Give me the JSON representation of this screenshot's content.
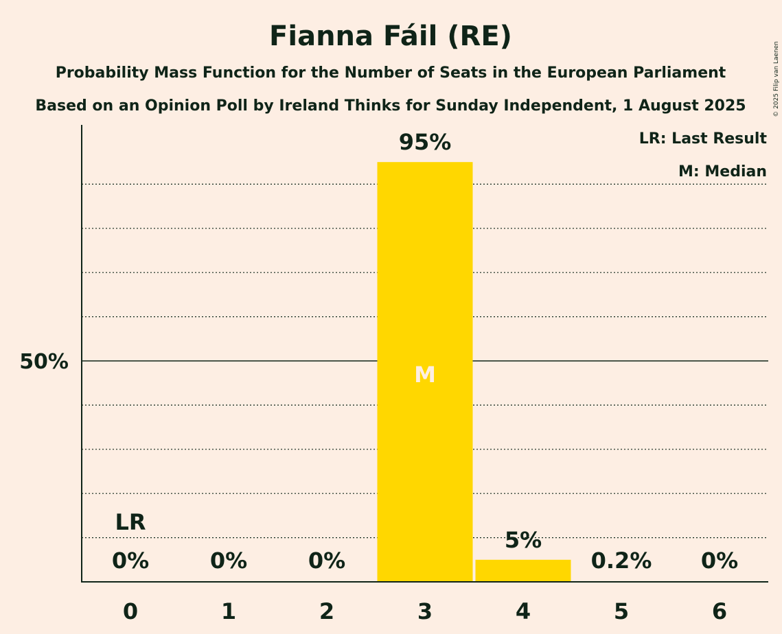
{
  "chart_data": {
    "type": "bar",
    "title": "Fianna Fáil (RE)",
    "subtitle": "Probability Mass Function for the Number of Seats in the European Parliament",
    "subtitle2": "Based on an Opinion Poll by Ireland Thinks for Sunday Independent, 1 August 2025",
    "copyright": "© 2025 Filip van Laenen",
    "categories": [
      "0",
      "1",
      "2",
      "3",
      "4",
      "5",
      "6"
    ],
    "values": [
      0,
      0,
      0,
      95,
      5,
      0.2,
      0
    ],
    "value_labels": [
      "0%",
      "0%",
      "0%",
      "95%",
      "5%",
      "0.2%",
      "0%"
    ],
    "ylim": [
      0,
      100
    ],
    "ytick_label": "50%",
    "ytick_value": 50,
    "last_result_index": 0,
    "last_result_marker": "LR",
    "median_index": 3,
    "median_marker": "M",
    "legend": [
      "LR: Last Result",
      "M: Median"
    ],
    "legend_position": "top-right",
    "bar_color": "#FFD700",
    "background": "#FDEEE3",
    "text_color": "#0F2418"
  }
}
